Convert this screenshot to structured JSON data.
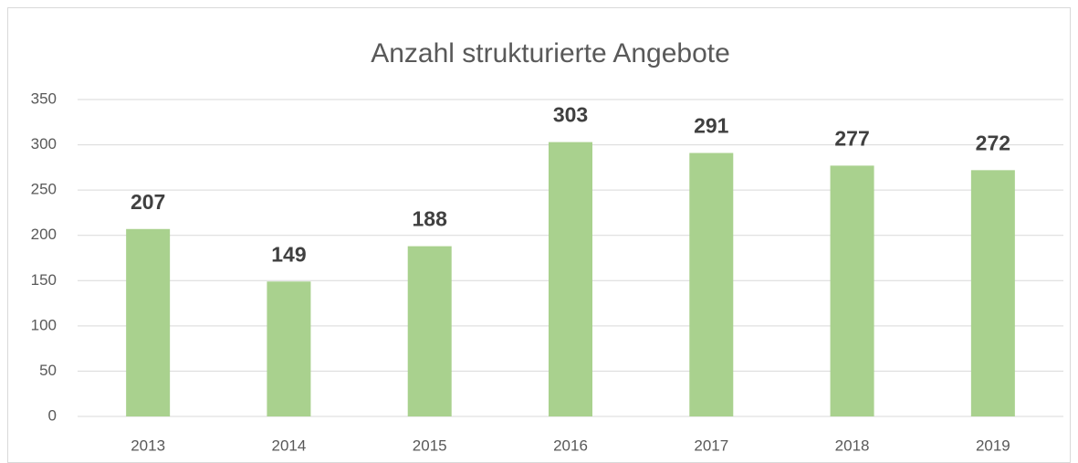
{
  "chart_data": {
    "type": "bar",
    "title": "Anzahl strukturierte Angebote",
    "categories": [
      "2013",
      "2014",
      "2015",
      "2016",
      "2017",
      "2018",
      "2019"
    ],
    "values": [
      207,
      149,
      188,
      303,
      291,
      277,
      272
    ],
    "color": "#a9d18e",
    "ylim": [
      0,
      350
    ],
    "yticks": [
      0,
      50,
      100,
      150,
      200,
      250,
      300,
      350
    ],
    "grid": true
  }
}
